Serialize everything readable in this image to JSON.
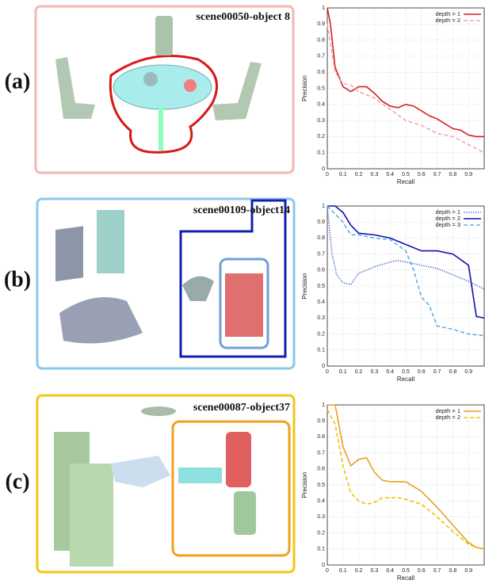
{
  "panels": [
    {
      "label": "(a)",
      "scene": "scene00050-object 8"
    },
    {
      "label": "(b)",
      "scene": "scene00109-object14"
    },
    {
      "label": "(c)",
      "scene": "scene00087-object37"
    }
  ],
  "chart_data": [
    {
      "type": "line",
      "xlabel": "Recall",
      "ylabel": "Precision",
      "xlim": [
        0,
        1
      ],
      "ylim": [
        0,
        1
      ],
      "xticks": [
        0,
        0.1,
        0.2,
        0.3,
        0.4,
        0.5,
        0.6,
        0.7,
        0.8,
        0.9
      ],
      "yticks": [
        0,
        0.1,
        0.2,
        0.3,
        0.4,
        0.5,
        0.6,
        0.7,
        0.8,
        0.9,
        1
      ],
      "grid": true,
      "legend": "upper right",
      "series": [
        {
          "name": "depth = 1",
          "color": "#d42020",
          "style": "solid",
          "x": [
            0,
            0.02,
            0.05,
            0.1,
            0.15,
            0.2,
            0.25,
            0.3,
            0.35,
            0.4,
            0.45,
            0.5,
            0.55,
            0.6,
            0.65,
            0.7,
            0.75,
            0.8,
            0.85,
            0.9,
            0.95,
            1
          ],
          "values": [
            1,
            0.9,
            0.63,
            0.51,
            0.48,
            0.51,
            0.51,
            0.47,
            0.42,
            0.39,
            0.38,
            0.4,
            0.39,
            0.36,
            0.33,
            0.31,
            0.28,
            0.25,
            0.24,
            0.21,
            0.2,
            0.2
          ]
        },
        {
          "name": "depth = 2",
          "color": "#f2a8a8",
          "style": "dashed",
          "x": [
            0,
            0.05,
            0.1,
            0.15,
            0.2,
            0.3,
            0.4,
            0.5,
            0.6,
            0.7,
            0.8,
            0.9,
            1
          ],
          "values": [
            0.9,
            0.6,
            0.53,
            0.52,
            0.48,
            0.44,
            0.37,
            0.3,
            0.27,
            0.22,
            0.2,
            0.15,
            0.1
          ]
        }
      ]
    },
    {
      "type": "line",
      "xlabel": "Recall",
      "ylabel": "Precision",
      "xlim": [
        0,
        1
      ],
      "ylim": [
        0,
        1
      ],
      "xticks": [
        0,
        0.1,
        0.2,
        0.3,
        0.4,
        0.5,
        0.6,
        0.7,
        0.8,
        0.9
      ],
      "yticks": [
        0,
        0.1,
        0.2,
        0.3,
        0.4,
        0.5,
        0.6,
        0.7,
        0.8,
        0.9,
        1
      ],
      "grid": true,
      "legend": "upper right",
      "series": [
        {
          "name": "depth = 1",
          "color": "#5a7fd0",
          "style": "dotted",
          "x": [
            0,
            0.03,
            0.06,
            0.1,
            0.15,
            0.2,
            0.3,
            0.4,
            0.45,
            0.5,
            0.6,
            0.7,
            0.8,
            0.9,
            1
          ],
          "values": [
            1,
            0.7,
            0.57,
            0.52,
            0.51,
            0.58,
            0.62,
            0.65,
            0.66,
            0.65,
            0.63,
            0.61,
            0.57,
            0.53,
            0.48
          ]
        },
        {
          "name": "depth = 2",
          "color": "#1010b0",
          "style": "solid",
          "x": [
            0,
            0.05,
            0.1,
            0.15,
            0.2,
            0.3,
            0.4,
            0.5,
            0.6,
            0.7,
            0.8,
            0.9,
            0.95,
            1
          ],
          "values": [
            1,
            1,
            0.96,
            0.88,
            0.83,
            0.82,
            0.8,
            0.76,
            0.72,
            0.72,
            0.7,
            0.63,
            0.31,
            0.3
          ]
        },
        {
          "name": "depth = 3",
          "color": "#60b0e8",
          "style": "dashed",
          "x": [
            0,
            0.05,
            0.1,
            0.15,
            0.2,
            0.3,
            0.4,
            0.5,
            0.55,
            0.6,
            0.65,
            0.7,
            0.8,
            0.9,
            1
          ],
          "values": [
            1,
            0.95,
            0.9,
            0.82,
            0.82,
            0.8,
            0.79,
            0.72,
            0.6,
            0.43,
            0.38,
            0.25,
            0.23,
            0.2,
            0.19
          ]
        }
      ]
    },
    {
      "type": "line",
      "xlabel": "Recall",
      "ylabel": "Precision",
      "xlim": [
        0,
        1
      ],
      "ylim": [
        0,
        1
      ],
      "xticks": [
        0,
        0.1,
        0.2,
        0.3,
        0.4,
        0.5,
        0.6,
        0.7,
        0.8,
        0.9
      ],
      "yticks": [
        0,
        0.1,
        0.2,
        0.3,
        0.4,
        0.5,
        0.6,
        0.7,
        0.8,
        0.9,
        1
      ],
      "grid": true,
      "legend": "upper right",
      "series": [
        {
          "name": "depth = 1",
          "color": "#e8a020",
          "style": "solid",
          "x": [
            0,
            0.05,
            0.1,
            0.15,
            0.2,
            0.25,
            0.3,
            0.35,
            0.4,
            0.5,
            0.6,
            0.7,
            0.8,
            0.9,
            0.95,
            1
          ],
          "values": [
            1,
            1,
            0.74,
            0.62,
            0.66,
            0.67,
            0.58,
            0.53,
            0.52,
            0.52,
            0.46,
            0.36,
            0.25,
            0.14,
            0.11,
            0.1
          ]
        },
        {
          "name": "depth = 2",
          "color": "#f0c000",
          "style": "dashed",
          "x": [
            0,
            0.05,
            0.1,
            0.15,
            0.2,
            0.25,
            0.3,
            0.35,
            0.45,
            0.5,
            0.6,
            0.7,
            0.8,
            0.9,
            0.95,
            1
          ],
          "values": [
            0.97,
            0.88,
            0.62,
            0.45,
            0.4,
            0.38,
            0.39,
            0.42,
            0.42,
            0.41,
            0.38,
            0.3,
            0.21,
            0.13,
            0.11,
            0.1
          ]
        }
      ]
    }
  ]
}
